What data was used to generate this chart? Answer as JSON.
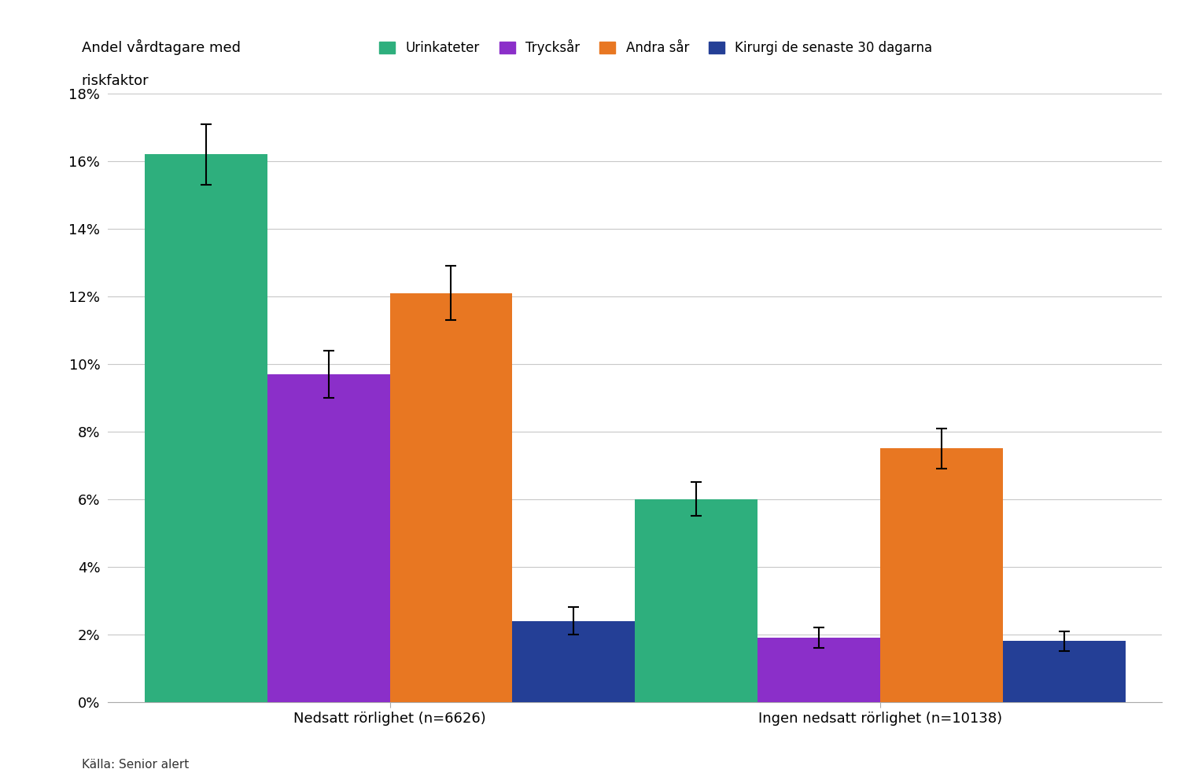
{
  "groups": [
    "Nedsatt rörlighet (n=6626)",
    "Ingen nedsatt rörlighet (n=10138)"
  ],
  "categories": [
    "Urinkateter",
    "Trycksår",
    "Andra sår",
    "Kirurgi de senaste 30 dagarna"
  ],
  "values": [
    [
      0.162,
      0.097,
      0.121,
      0.024
    ],
    [
      0.06,
      0.019,
      0.075,
      0.018
    ]
  ],
  "errors": [
    [
      0.009,
      0.007,
      0.008,
      0.004
    ],
    [
      0.005,
      0.003,
      0.006,
      0.003
    ]
  ],
  "colors": [
    "#2EAF7D",
    "#8B2FC9",
    "#E87722",
    "#243F96"
  ],
  "ylabel_line1": "Andel vårdtagare med",
  "ylabel_line2": "riskfaktor",
  "ylim": [
    0,
    0.18
  ],
  "yticks": [
    0.0,
    0.02,
    0.04,
    0.06,
    0.08,
    0.1,
    0.12,
    0.14,
    0.16,
    0.18
  ],
  "ytick_labels": [
    "0%",
    "2%",
    "4%",
    "6%",
    "8%",
    "10%",
    "12%",
    "14%",
    "16%",
    "18%"
  ],
  "source": "Källa: Senior alert",
  "background_color": "#FFFFFF",
  "grid_color": "#C8C8C8"
}
